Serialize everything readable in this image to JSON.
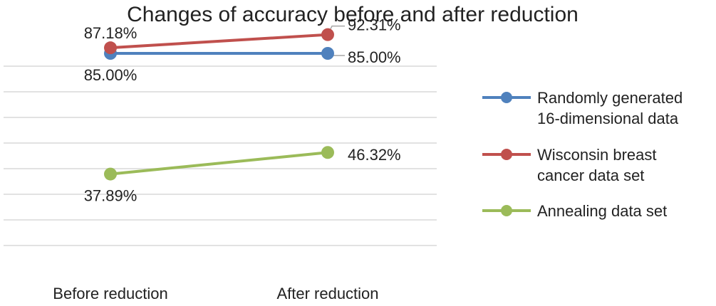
{
  "chart_data": {
    "type": "line",
    "title": "Changes of accuracy before and after reduction",
    "categories": [
      "Before reduction",
      "After reduction"
    ],
    "ylim": [
      0,
      100
    ],
    "grid": true,
    "legend_position": "right",
    "series": [
      {
        "name": "Randomly generated 16-dimensional data",
        "name_lines": [
          "Randomly generated",
          "16-dimensional data"
        ],
        "color": "#4f81bd",
        "values": [
          85.0,
          85.0
        ],
        "labels": [
          "85.00%",
          "85.00%"
        ]
      },
      {
        "name": "Wisconsin breast cancer data set",
        "name_lines": [
          "Wisconsin breast",
          "cancer data set"
        ],
        "color": "#c0504d",
        "values": [
          87.18,
          92.31
        ],
        "labels": [
          "87.18%",
          "92.31%"
        ]
      },
      {
        "name": "Annealing data set",
        "name_lines": [
          "Annealing data set"
        ],
        "color": "#9bbb59",
        "values": [
          37.89,
          46.32
        ],
        "labels": [
          "37.89%",
          "46.32%"
        ]
      }
    ]
  }
}
